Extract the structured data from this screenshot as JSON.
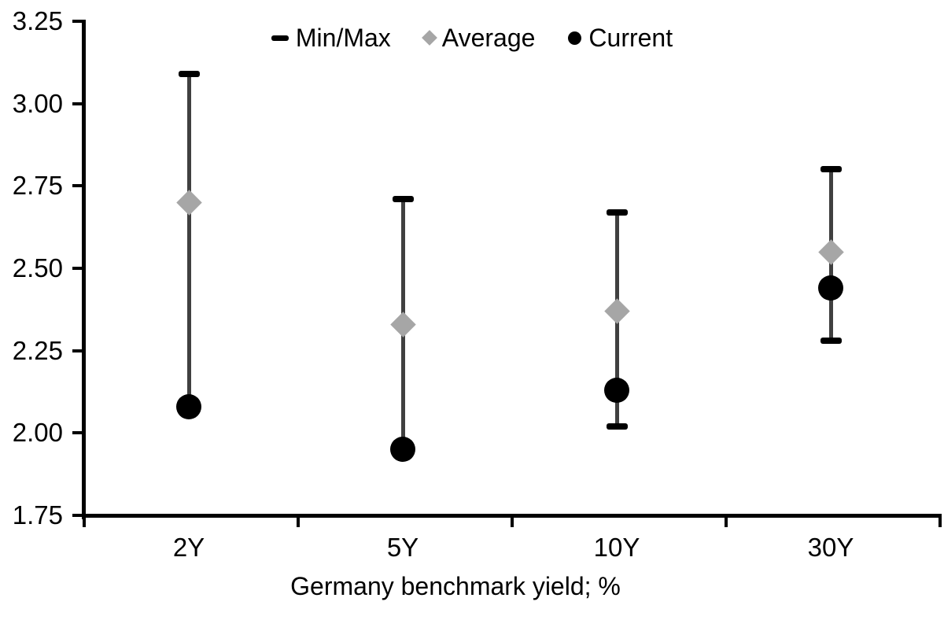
{
  "chart_data": {
    "type": "range-dot",
    "description": "Min/Max whisker range per tenor with average (diamond) and current (circle) markers",
    "title": "",
    "xlabel": "Germany benchmark yield; %",
    "ylabel": "",
    "ylim": [
      1.75,
      3.25
    ],
    "y_tick_labels": [
      "3.25",
      "3.00",
      "2.75",
      "2.50",
      "2.25",
      "2.00",
      "1.75"
    ],
    "y_tick_values": [
      3.25,
      3.0,
      2.75,
      2.5,
      2.25,
      2.0,
      1.75
    ],
    "categories": [
      "2Y",
      "5Y",
      "10Y",
      "30Y"
    ],
    "series": [
      {
        "name": "Min/Max",
        "marker": "dash-cap-range",
        "max": [
          3.09,
          2.71,
          2.67,
          2.8
        ],
        "min": [
          2.08,
          1.95,
          2.02,
          2.28
        ],
        "min_cap_visible": [
          false,
          false,
          true,
          true
        ]
      },
      {
        "name": "Average",
        "marker": "diamond",
        "values": [
          2.7,
          2.33,
          2.37,
          2.55
        ]
      },
      {
        "name": "Current",
        "marker": "circle",
        "values": [
          2.08,
          1.95,
          2.13,
          2.44
        ]
      }
    ],
    "legend": {
      "labels": [
        "Min/Max",
        "Average",
        "Current"
      ],
      "position": "top-center"
    },
    "grid": false,
    "colors": {
      "range_line": "#404040",
      "cap": "#000000",
      "average": "#a6a6a6",
      "current": "#000000",
      "axis": "#000000",
      "text": "#000000",
      "background": "#ffffff"
    }
  }
}
